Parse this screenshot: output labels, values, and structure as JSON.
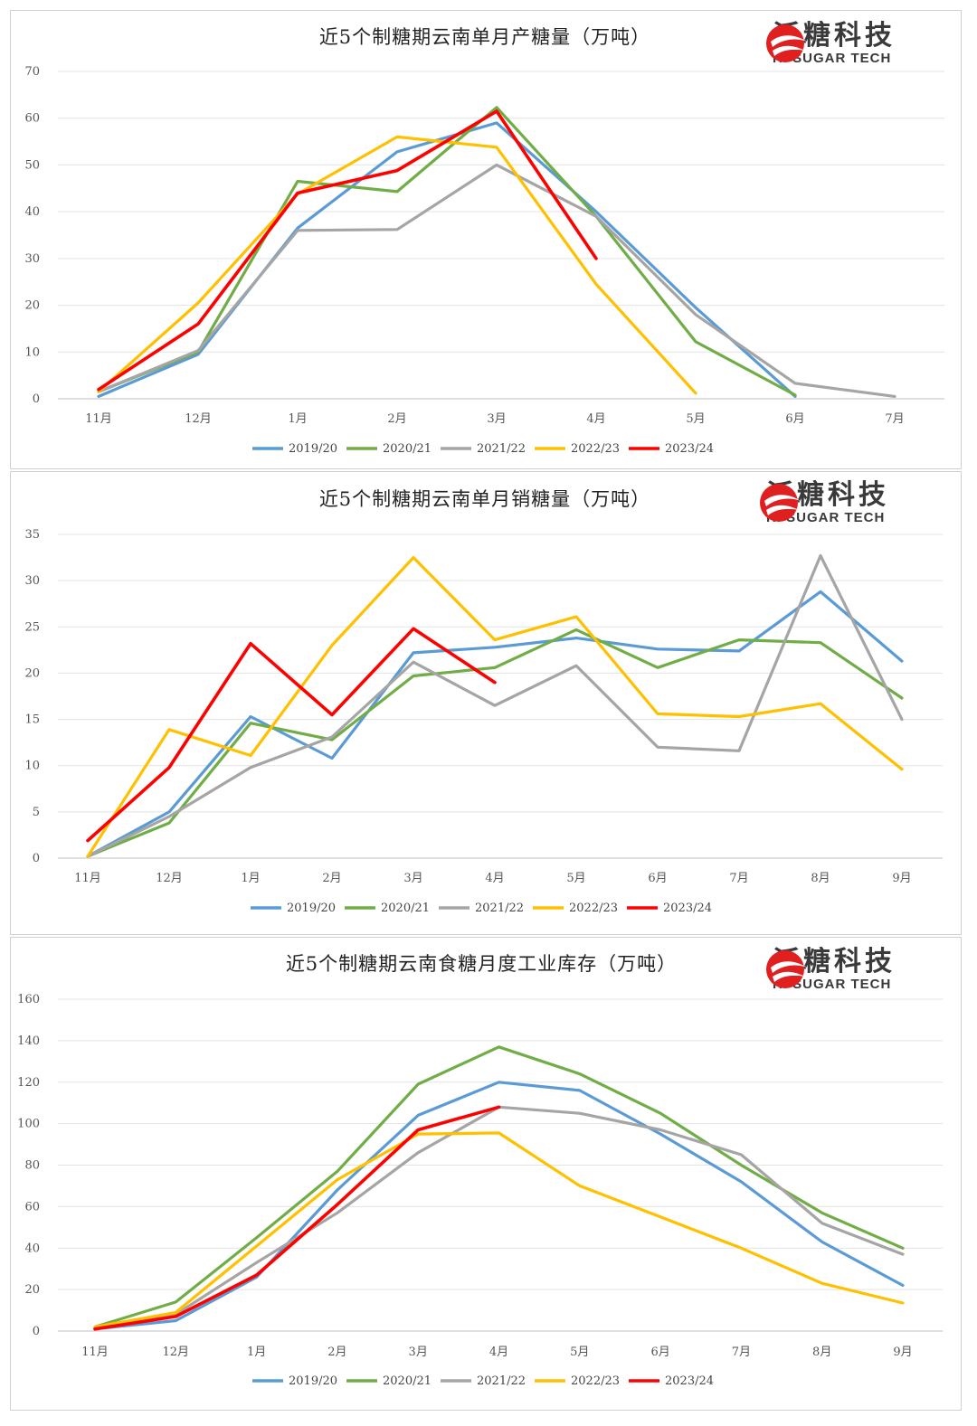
{
  "logo": {
    "cn": "泛糖科技",
    "en": "HI SUGAR TECH"
  },
  "colors": {
    "2019/20": "#5b9bd5",
    "2020/21": "#70ad47",
    "2021/22": "#a5a5a5",
    "2022/23": "#ffc000",
    "2023/24": "#ff0000"
  },
  "chart_data": [
    {
      "type": "line",
      "title": "近5个制糖期云南单月产糖量（万吨）",
      "categories": [
        "11月",
        "12月",
        "1月",
        "2月",
        "3月",
        "4月",
        "5月",
        "6月",
        "7月"
      ],
      "ylim": [
        0,
        70
      ],
      "yticks": [
        0,
        10,
        20,
        30,
        40,
        50,
        60,
        70
      ],
      "grid": true,
      "legend": "bottom",
      "series": [
        {
          "name": "2019/20",
          "values": [
            0.5,
            9.5,
            36.5,
            52.8,
            59,
            40,
            19.5,
            0.5,
            null
          ]
        },
        {
          "name": "2020/21",
          "values": [
            1.5,
            10,
            46.5,
            44.3,
            62.3,
            39,
            12.2,
            0.8,
            null
          ]
        },
        {
          "name": "2021/22",
          "values": [
            1.5,
            10.3,
            36,
            36.2,
            50,
            39,
            18,
            3.3,
            0.5
          ]
        },
        {
          "name": "2022/23",
          "values": [
            1.5,
            20.5,
            43.8,
            56,
            53.8,
            24.5,
            1.2,
            null,
            null
          ]
        },
        {
          "name": "2023/24",
          "values": [
            2,
            16,
            44,
            48.8,
            61.5,
            30,
            null,
            null,
            null
          ]
        }
      ]
    },
    {
      "type": "line",
      "title": "近5个制糖期云南单月销糖量（万吨）",
      "categories": [
        "11月",
        "12月",
        "1月",
        "2月",
        "3月",
        "4月",
        "5月",
        "6月",
        "7月",
        "8月",
        "9月"
      ],
      "ylim": [
        0,
        35
      ],
      "yticks": [
        0,
        5,
        10,
        15,
        20,
        25,
        30,
        35
      ],
      "grid": true,
      "legend": "bottom",
      "series": [
        {
          "name": "2019/20",
          "values": [
            0.2,
            5,
            15.3,
            10.8,
            22.2,
            22.8,
            23.8,
            22.6,
            22.4,
            28.8,
            21.3
          ]
        },
        {
          "name": "2020/21",
          "values": [
            0.2,
            3.8,
            14.6,
            12.8,
            19.7,
            20.6,
            24.7,
            20.6,
            23.6,
            23.3,
            17.3
          ]
        },
        {
          "name": "2021/22",
          "values": [
            0.2,
            4.5,
            9.8,
            13.1,
            21.2,
            16.5,
            20.8,
            12,
            11.6,
            32.7,
            15
          ]
        },
        {
          "name": "2022/23",
          "values": [
            0.2,
            13.9,
            11.1,
            23,
            32.5,
            23.6,
            26.1,
            15.6,
            15.3,
            16.7,
            9.6
          ]
        },
        {
          "name": "2023/24",
          "values": [
            1.9,
            9.8,
            23.2,
            15.5,
            24.8,
            19,
            null,
            null,
            null,
            null,
            null
          ]
        }
      ]
    },
    {
      "type": "line",
      "title": "近5个制糖期云南食糖月度工业库存（万吨）",
      "categories": [
        "11月",
        "12月",
        "1月",
        "2月",
        "3月",
        "4月",
        "5月",
        "6月",
        "7月",
        "8月",
        "9月"
      ],
      "ylim": [
        0,
        160
      ],
      "yticks": [
        0,
        20,
        40,
        60,
        80,
        100,
        120,
        140,
        160
      ],
      "grid": true,
      "legend": "bottom",
      "series": [
        {
          "name": "2019/20",
          "values": [
            1,
            5,
            26,
            68,
            104,
            120,
            116,
            95,
            72,
            43,
            22
          ]
        },
        {
          "name": "2020/21",
          "values": [
            2,
            14,
            45,
            77,
            119,
            137,
            124,
            105,
            80,
            57,
            40
          ]
        },
        {
          "name": "2021/22",
          "values": [
            1,
            8,
            33,
            57,
            86,
            108,
            105,
            97,
            85,
            52,
            37
          ]
        },
        {
          "name": "2022/23",
          "values": [
            2,
            9,
            41,
            73,
            95,
            95.5,
            70,
            55,
            40,
            23,
            13.5
          ]
        },
        {
          "name": "2023/24",
          "values": [
            1,
            7,
            27,
            61,
            97,
            108,
            null,
            null,
            null,
            null,
            null
          ]
        }
      ]
    }
  ]
}
